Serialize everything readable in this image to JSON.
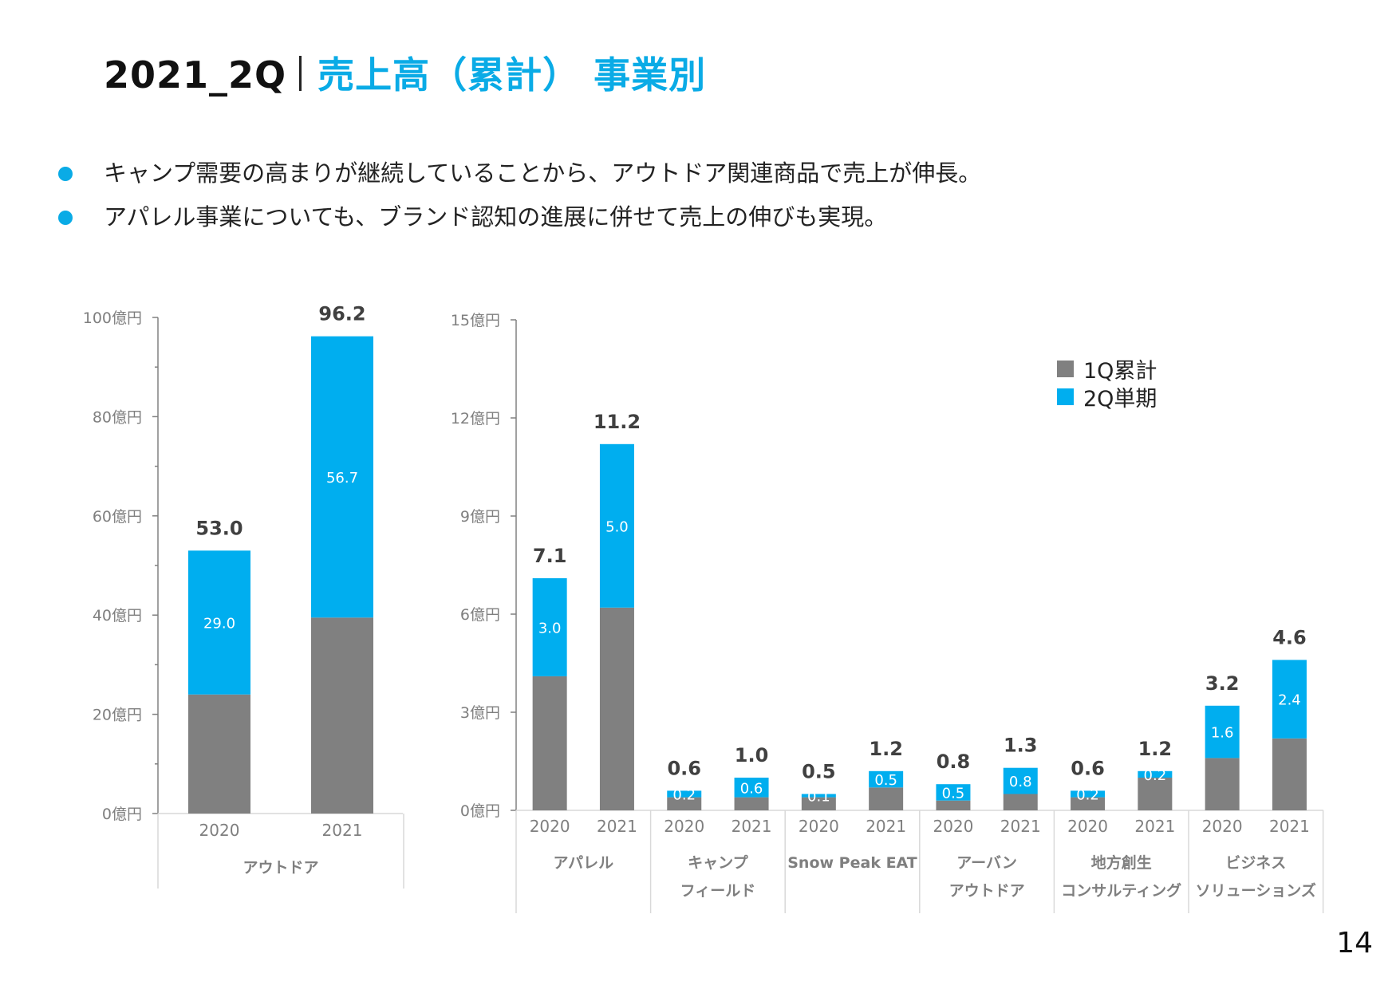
{
  "header": {
    "prefix": "2021_2Q",
    "title": "売上高（累計） 事業別"
  },
  "bullets": [
    "キャンプ需要の高まりが継続していることから、アウトドア関連商品で売上が伸長。",
    "アパレル事業についても、ブランド認知の進展に併せて売上の伸びも実現。"
  ],
  "page_number": "14",
  "colors": {
    "accent": "#0aabe6",
    "q1": "#808080",
    "q2": "#00aeef",
    "axis": "#808080",
    "grid_box": "#d9d9d9",
    "label": "#7f7f7f",
    "total": "#404040"
  },
  "legend": [
    {
      "label": "1Q累計",
      "color": "#808080"
    },
    {
      "label": "2Q単期",
      "color": "#00aeef"
    }
  ],
  "chart_data": [
    {
      "type": "bar",
      "stacked": true,
      "title": "",
      "unit": "億円",
      "ylim": [
        0,
        100
      ],
      "yticks": [
        0,
        20,
        40,
        60,
        80,
        100
      ],
      "ytick_labels": [
        "0億円",
        "20億円",
        "40億円",
        "60億円",
        "80億円",
        "100億円"
      ],
      "groups": [
        {
          "name": "アウトドア",
          "name_lines": [
            "アウトドア"
          ],
          "categories": [
            "2020",
            "2021"
          ],
          "q1": [
            24.0,
            39.5
          ],
          "q2": [
            29.0,
            56.7
          ],
          "q2_labels": [
            "29.0",
            "56.7"
          ],
          "totals": [
            "53.0",
            "96.2"
          ]
        }
      ],
      "series": [
        {
          "name": "1Q累計"
        },
        {
          "name": "2Q単期"
        }
      ]
    },
    {
      "type": "bar",
      "stacked": true,
      "title": "",
      "unit": "億円",
      "ylim": [
        0,
        15
      ],
      "yticks": [
        0,
        3,
        6,
        9,
        12,
        15
      ],
      "ytick_labels": [
        "0億円",
        "3億円",
        "6億円",
        "9億円",
        "12億円",
        "15億円"
      ],
      "legend_position": "top-right",
      "groups": [
        {
          "name": "アパレル",
          "name_lines": [
            "アパレル"
          ],
          "categories": [
            "2020",
            "2021"
          ],
          "q1": [
            4.1,
            6.2
          ],
          "q2": [
            3.0,
            5.0
          ],
          "q2_labels": [
            "3.0",
            "5.0"
          ],
          "totals": [
            "7.1",
            "11.2"
          ]
        },
        {
          "name": "キャンプフィールド",
          "name_lines": [
            "キャンプ",
            "フィールド"
          ],
          "categories": [
            "2020",
            "2021"
          ],
          "q1": [
            0.4,
            0.4
          ],
          "q2": [
            0.2,
            0.6
          ],
          "q2_labels": [
            "0.2",
            "0.6"
          ],
          "totals": [
            "0.6",
            "1.0"
          ]
        },
        {
          "name": "Snow Peak EAT",
          "name_lines": [
            "Snow Peak EAT"
          ],
          "categories": [
            "2020",
            "2021"
          ],
          "q1": [
            0.4,
            0.7
          ],
          "q2": [
            0.1,
            0.5
          ],
          "q2_labels": [
            "0.1",
            "0.5"
          ],
          "totals": [
            "0.5",
            "1.2"
          ]
        },
        {
          "name": "アーバンアウトドア",
          "name_lines": [
            "アーバン",
            "アウトドア"
          ],
          "categories": [
            "2020",
            "2021"
          ],
          "q1": [
            0.3,
            0.5
          ],
          "q2": [
            0.5,
            0.8
          ],
          "q2_labels": [
            "0.5",
            "0.8"
          ],
          "totals": [
            "0.8",
            "1.3"
          ]
        },
        {
          "name": "地方創生コンサルティング",
          "name_lines": [
            "地方創生",
            "コンサルティング"
          ],
          "categories": [
            "2020",
            "2021"
          ],
          "q1": [
            0.4,
            1.0
          ],
          "q2": [
            0.2,
            0.2
          ],
          "q2_labels": [
            "0.2",
            "0.2"
          ],
          "totals": [
            "0.6",
            "1.2"
          ]
        },
        {
          "name": "ビジネスソリューションズ",
          "name_lines": [
            "ビジネス",
            "ソリューションズ"
          ],
          "categories": [
            "2020",
            "2021"
          ],
          "q1": [
            1.6,
            2.2
          ],
          "q2": [
            1.6,
            2.4
          ],
          "q2_labels": [
            "1.6",
            "2.4"
          ],
          "totals": [
            "3.2",
            "4.6"
          ]
        }
      ],
      "series": [
        {
          "name": "1Q累計"
        },
        {
          "name": "2Q単期"
        }
      ]
    }
  ]
}
